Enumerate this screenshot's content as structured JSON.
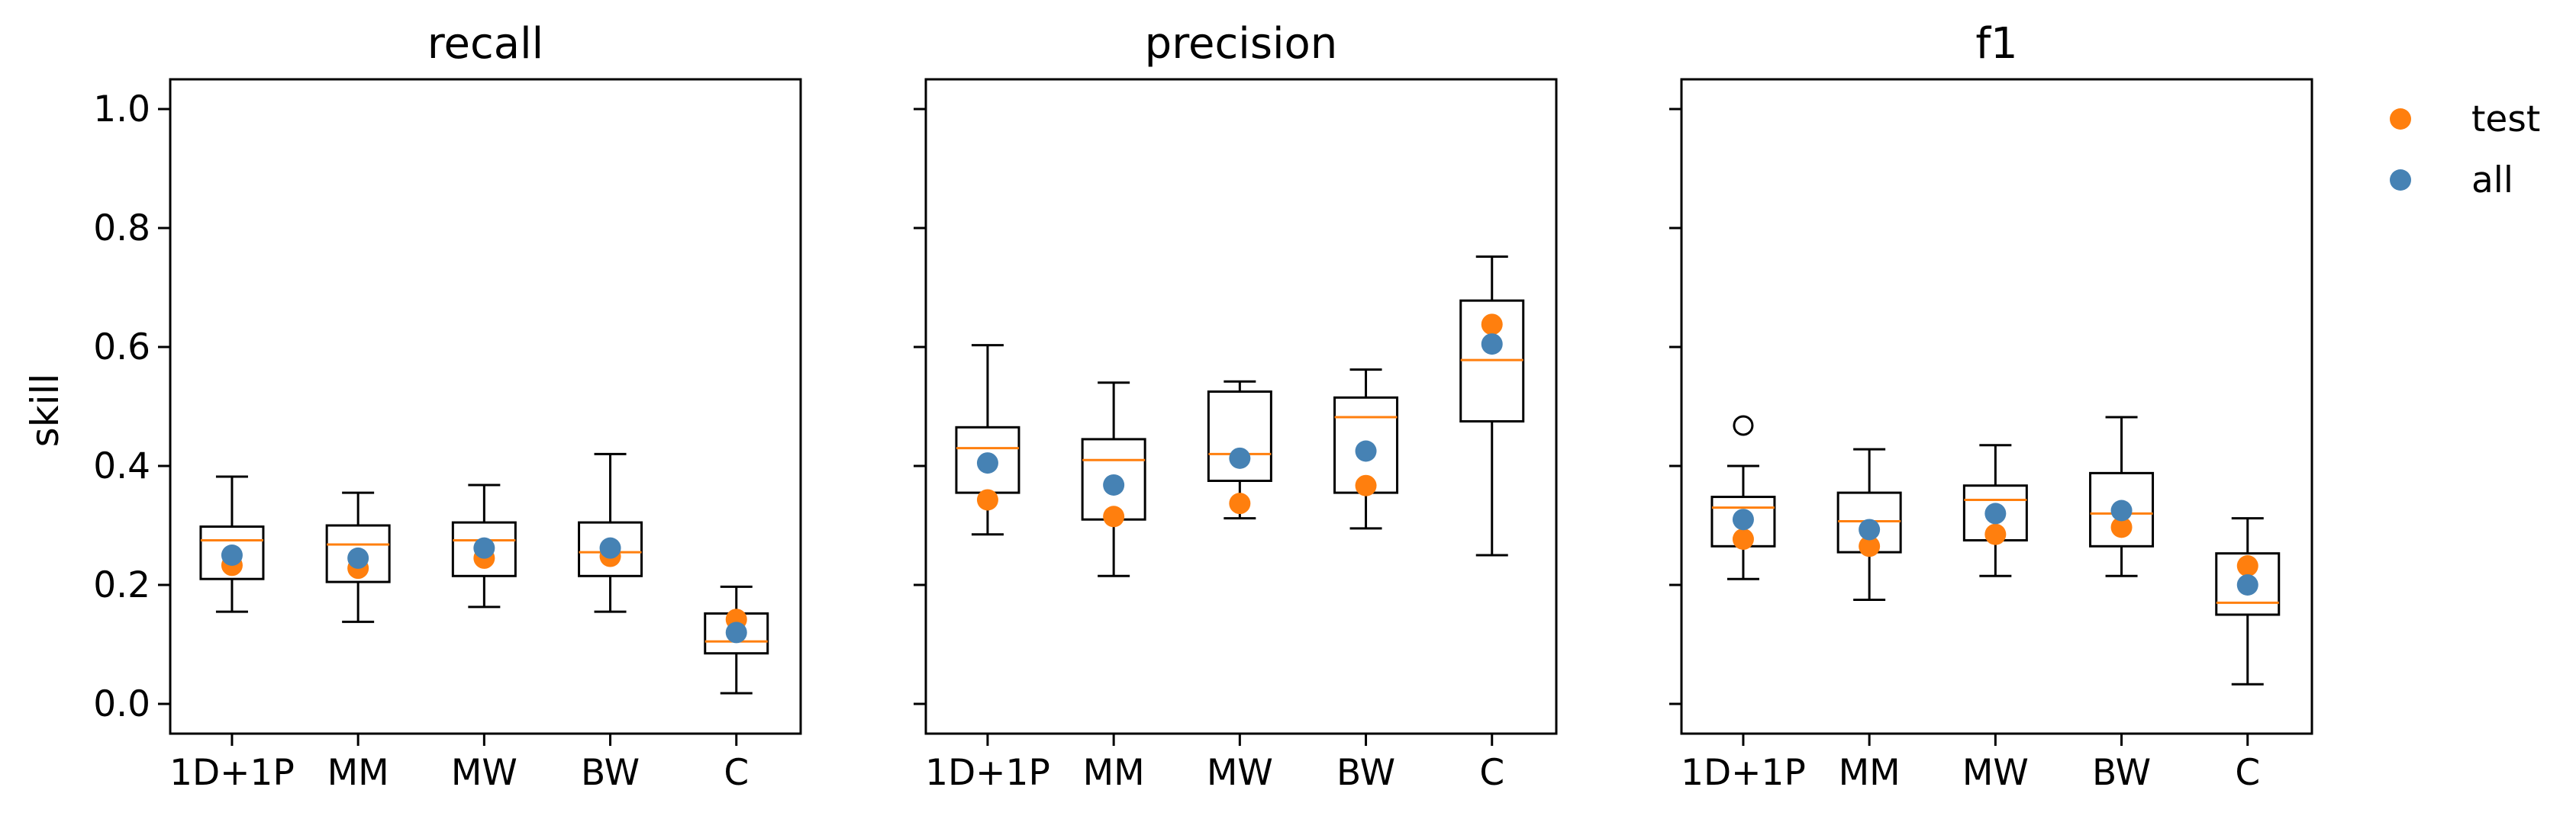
{
  "chart_data": {
    "type": "boxplot",
    "ylabel": "skill",
    "ylim": [
      -0.05,
      1.05
    ],
    "yticks": [
      "0.0",
      "0.2",
      "0.4",
      "0.6",
      "0.8",
      "1.0"
    ],
    "yticks_values": [
      0.0,
      0.2,
      0.4,
      0.6,
      0.8,
      1.0
    ],
    "categories": [
      "1D+1P",
      "MM",
      "MW",
      "BW",
      "C"
    ],
    "legend": {
      "position": "upper-right-outside",
      "entries": [
        {
          "label": "test",
          "color": "#ff7f0e"
        },
        {
          "label": "all",
          "color": "#4682b4"
        }
      ]
    },
    "colors": {
      "test": "#ff7f0e",
      "all": "#4682b4",
      "median": "#ff7f0e",
      "box": "#000000"
    },
    "panels": [
      {
        "title": "recall",
        "boxes": [
          {
            "whislo": 0.155,
            "q1": 0.21,
            "med": 0.275,
            "q3": 0.298,
            "whishi": 0.382,
            "fliers": []
          },
          {
            "whislo": 0.138,
            "q1": 0.205,
            "med": 0.268,
            "q3": 0.3,
            "whishi": 0.355,
            "fliers": []
          },
          {
            "whislo": 0.163,
            "q1": 0.215,
            "med": 0.275,
            "q3": 0.305,
            "whishi": 0.368,
            "fliers": []
          },
          {
            "whislo": 0.155,
            "q1": 0.215,
            "med": 0.255,
            "q3": 0.305,
            "whishi": 0.42,
            "fliers": []
          },
          {
            "whislo": 0.018,
            "q1": 0.085,
            "med": 0.105,
            "q3": 0.152,
            "whishi": 0.197,
            "fliers": []
          }
        ],
        "test": [
          0.233,
          0.228,
          0.245,
          0.248,
          0.142
        ],
        "all": [
          0.25,
          0.245,
          0.262,
          0.262,
          0.12
        ]
      },
      {
        "title": "precision",
        "boxes": [
          {
            "whislo": 0.285,
            "q1": 0.355,
            "med": 0.43,
            "q3": 0.465,
            "whishi": 0.603,
            "fliers": []
          },
          {
            "whislo": 0.215,
            "q1": 0.31,
            "med": 0.41,
            "q3": 0.445,
            "whishi": 0.54,
            "fliers": []
          },
          {
            "whislo": 0.312,
            "q1": 0.375,
            "med": 0.42,
            "q3": 0.525,
            "whishi": 0.542,
            "fliers": []
          },
          {
            "whislo": 0.295,
            "q1": 0.355,
            "med": 0.482,
            "q3": 0.515,
            "whishi": 0.562,
            "fliers": []
          },
          {
            "whislo": 0.25,
            "q1": 0.475,
            "med": 0.578,
            "q3": 0.678,
            "whishi": 0.752,
            "fliers": []
          }
        ],
        "test": [
          0.343,
          0.315,
          0.337,
          0.367,
          0.638
        ],
        "all": [
          0.405,
          0.368,
          0.413,
          0.425,
          0.605
        ]
      },
      {
        "title": "f1",
        "boxes": [
          {
            "whislo": 0.21,
            "q1": 0.265,
            "med": 0.33,
            "q3": 0.348,
            "whishi": 0.4,
            "fliers": [
              0.468
            ]
          },
          {
            "whislo": 0.175,
            "q1": 0.255,
            "med": 0.307,
            "q3": 0.355,
            "whishi": 0.428,
            "fliers": []
          },
          {
            "whislo": 0.215,
            "q1": 0.275,
            "med": 0.343,
            "q3": 0.367,
            "whishi": 0.435,
            "fliers": []
          },
          {
            "whislo": 0.215,
            "q1": 0.265,
            "med": 0.32,
            "q3": 0.388,
            "whishi": 0.482,
            "fliers": []
          },
          {
            "whislo": 0.033,
            "q1": 0.15,
            "med": 0.17,
            "q3": 0.253,
            "whishi": 0.312,
            "fliers": []
          }
        ],
        "test": [
          0.277,
          0.265,
          0.285,
          0.297,
          0.232
        ],
        "all": [
          0.31,
          0.293,
          0.32,
          0.325,
          0.2
        ]
      }
    ]
  }
}
